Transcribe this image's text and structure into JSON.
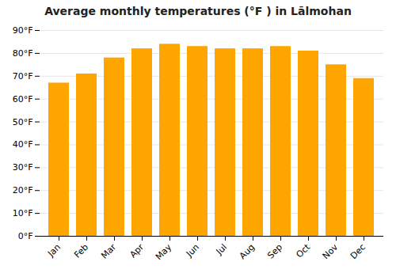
{
  "chart_data": {
    "type": "bar",
    "title": "Average monthly temperatures (°F ) in Lālmohan",
    "categories": [
      "Jan",
      "Feb",
      "Mar",
      "Apr",
      "May",
      "Jun",
      "Jul",
      "Aug",
      "Sep",
      "Oct",
      "Nov",
      "Dec"
    ],
    "values": [
      67,
      71,
      78,
      82,
      84,
      83,
      82,
      82,
      83,
      81,
      75,
      69
    ],
    "color": "#FFA500",
    "ylim": [
      0,
      90
    ],
    "yticks": [
      {
        "value": 0,
        "label": "0°F"
      },
      {
        "value": 10,
        "label": "10°F"
      },
      {
        "value": 20,
        "label": "20°F"
      },
      {
        "value": 30,
        "label": "30°F"
      },
      {
        "value": 40,
        "label": "40°F"
      },
      {
        "value": 50,
        "label": "50°F"
      },
      {
        "value": 60,
        "label": "60°F"
      },
      {
        "value": 70,
        "label": "70°F"
      },
      {
        "value": 80,
        "label": "80°F"
      },
      {
        "value": 90,
        "label": "90°F"
      }
    ],
    "grid": true
  }
}
